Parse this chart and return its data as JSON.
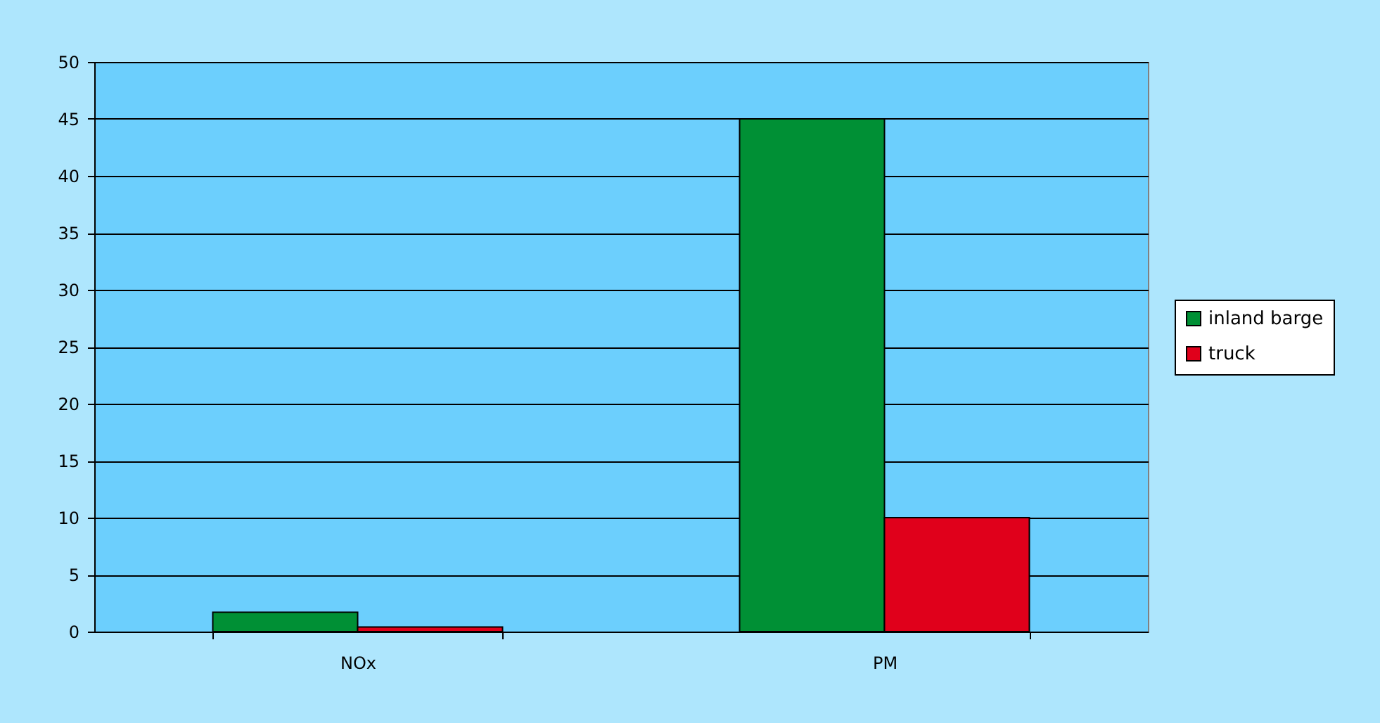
{
  "chart_data": {
    "type": "bar",
    "categories": [
      "NOx",
      "PM"
    ],
    "series": [
      {
        "name": "inland barge",
        "color": "#009035",
        "values": [
          1.7,
          45
        ]
      },
      {
        "name": "truck",
        "color": "#e0001b",
        "values": [
          0.4,
          10
        ]
      }
    ],
    "ylim": [
      0,
      50
    ],
    "yticks": [
      0,
      5,
      10,
      15,
      20,
      25,
      30,
      35,
      40,
      45,
      50
    ],
    "grid": "y",
    "legend": "right"
  }
}
